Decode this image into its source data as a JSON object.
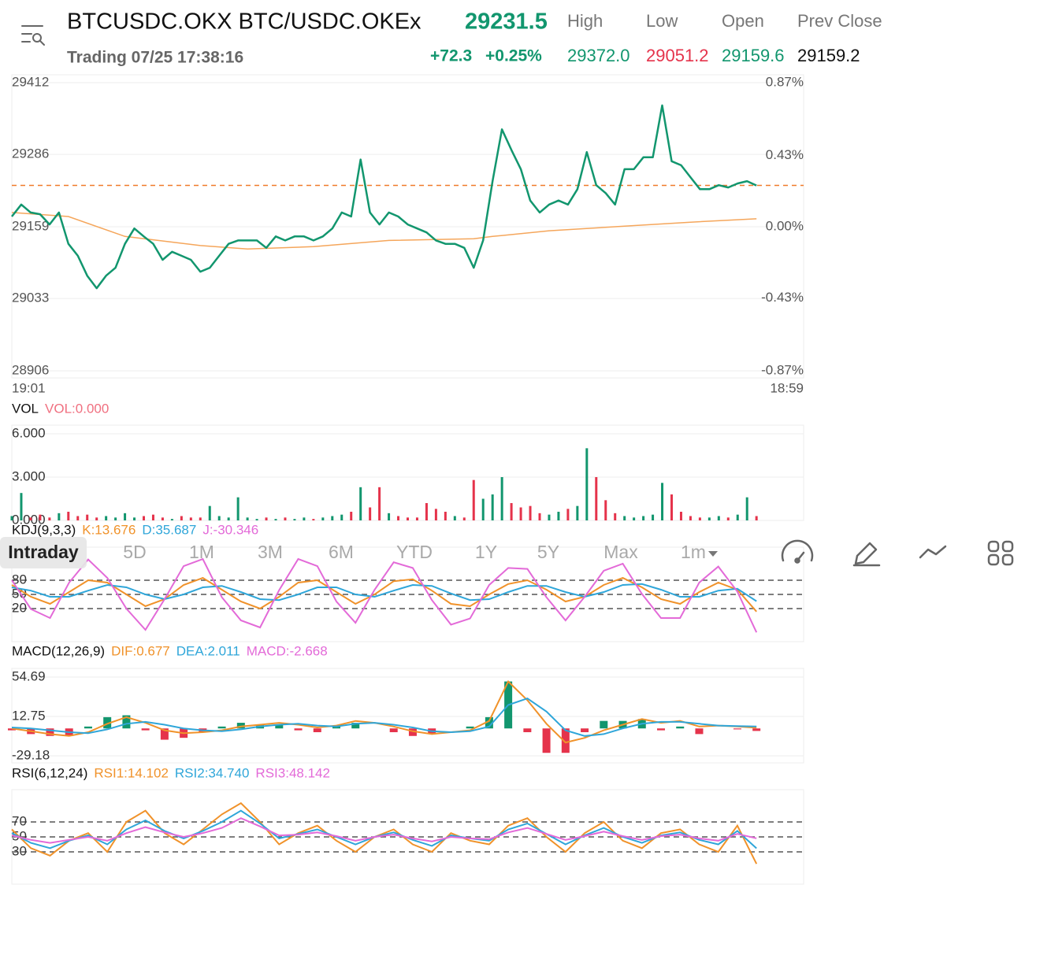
{
  "header": {
    "title": "BTCUSDC.OKX BTC/USDC.OKEx",
    "price": "29231.5",
    "status": "Trading 07/25 17:38:16",
    "change": "+72.3",
    "change_pct": "+0.25%",
    "up_color": "#12966e",
    "stats": [
      {
        "label": "High",
        "value": "29372.0",
        "color": "#12966e"
      },
      {
        "label": "Low",
        "value": "29051.2",
        "color": "#e5334b"
      },
      {
        "label": "Open",
        "value": "29159.6",
        "color": "#12966e"
      },
      {
        "label": "Prev Close",
        "value": "29159.2",
        "color": "#111111"
      }
    ]
  },
  "price_chart": {
    "type": "line",
    "xlim": [
      0,
      84
    ],
    "ylim": [
      28906,
      29412
    ],
    "yticks": [
      29412,
      29286,
      29159,
      29033,
      28906
    ],
    "y2lim": [
      -0.87,
      0.87
    ],
    "y2ticks": [
      {
        "value": 0.87,
        "label": "0.87%"
      },
      {
        "value": 0.43,
        "label": "0.43%"
      },
      {
        "value": 0,
        "label": "0.00%"
      },
      {
        "value": -0.43,
        "label": "-0.43%"
      },
      {
        "value": -0.87,
        "label": "-0.87%"
      }
    ],
    "xlabels": [
      "19:01",
      "18:59"
    ],
    "grid": true,
    "last_price": 29231.5,
    "last_color": "#f07a2a",
    "series": [
      {
        "color": "#12966e",
        "values": [
          29177,
          29198,
          29184,
          29181,
          29163,
          29184,
          29129,
          29108,
          29073,
          29051,
          29073,
          29087,
          29129,
          29156,
          29142,
          29129,
          29101,
          29115,
          29108,
          29101,
          29080,
          29087,
          29108,
          29129,
          29135,
          29135,
          29135,
          29122,
          29142,
          29135,
          29142,
          29142,
          29135,
          29142,
          29156,
          29184,
          29177,
          29277,
          29184,
          29163,
          29184,
          29177,
          29163,
          29156,
          29149,
          29135,
          29129,
          29129,
          29122,
          29087,
          29135,
          29239,
          29330,
          29294,
          29260,
          29205,
          29184,
          29198,
          29205,
          29198,
          29225,
          29290,
          29232,
          29218,
          29198,
          29260,
          29260,
          29281,
          29281,
          29372,
          29274,
          29267,
          29246,
          29225,
          29225,
          29232,
          29228,
          29235,
          29239,
          29231.5
        ]
      }
    ],
    "avg": {
      "color": "#f5a65b",
      "x": [
        0,
        6,
        12,
        20,
        25,
        32,
        40,
        49,
        51,
        57,
        65,
        72,
        79
      ],
      "values": [
        29184,
        29177,
        29142,
        29126,
        29120,
        29124,
        29135,
        29138,
        29142,
        29152,
        29160,
        29167,
        29173
      ]
    }
  },
  "volume": {
    "labels": [
      {
        "text": "VOL",
        "color": "#111111"
      },
      {
        "text": "VOL:0.000",
        "color": "#f07080"
      }
    ],
    "ylim": [
      0,
      6.6
    ],
    "yticks": [
      {
        "value": 6,
        "label": "6.000"
      },
      {
        "value": 3,
        "label": "3.000"
      },
      {
        "value": 0,
        "label": "0.000"
      }
    ],
    "up_color": "#12966e",
    "down_color": "#e5334b",
    "values": [
      0.3,
      1.9,
      0.2,
      0.4,
      0.2,
      0.5,
      0.6,
      0.3,
      0.4,
      0.2,
      0.3,
      0.2,
      0.5,
      0.2,
      0.3,
      0.4,
      0.2,
      0.1,
      0.3,
      0.2,
      0.2,
      1.0,
      0.3,
      0.2,
      1.6,
      0.2,
      0.1,
      0.2,
      0.1,
      0.2,
      0.1,
      0.2,
      0.1,
      0.2,
      0.3,
      0.4,
      0.6,
      2.3,
      0.9,
      2.3,
      0.5,
      0.3,
      0.2,
      0.2,
      1.2,
      0.8,
      0.6,
      0.3,
      0.2,
      2.8,
      1.5,
      1.8,
      3.0,
      1.2,
      0.9,
      1.0,
      0.5,
      0.4,
      0.6,
      0.8,
      1.0,
      5.0,
      3.0,
      1.4,
      0.5,
      0.3,
      0.2,
      0.3,
      0.4,
      2.6,
      1.8,
      0.6,
      0.3,
      0.2,
      0.2,
      0.3,
      0.2,
      0.4,
      1.6,
      0.3
    ]
  },
  "kdj": {
    "labels": [
      {
        "text": "KDJ(9,3,3)",
        "color": "#111111"
      },
      {
        "text": "K:13.676",
        "color": "#f0922a"
      },
      {
        "text": "D:35.687",
        "color": "#2fa6d9"
      },
      {
        "text": "J:-30.346",
        "color": "#e36ad8"
      }
    ],
    "ylim": [
      -50,
      150
    ],
    "yticks": [
      80,
      50,
      20
    ],
    "dashed": true,
    "series": [
      {
        "color": "#f0922a",
        "values": [
          70,
          45,
          30,
          55,
          80,
          75,
          50,
          25,
          40,
          70,
          85,
          60,
          35,
          20,
          45,
          75,
          80,
          55,
          30,
          50,
          78,
          82,
          58,
          30,
          25,
          50,
          72,
          80,
          60,
          35,
          45,
          70,
          85,
          65,
          40,
          30,
          55,
          75,
          60,
          13.676
        ]
      },
      {
        "color": "#2fa6d9",
        "values": [
          65,
          58,
          45,
          45,
          58,
          70,
          65,
          50,
          40,
          50,
          65,
          68,
          55,
          40,
          38,
          50,
          65,
          65,
          50,
          45,
          58,
          70,
          68,
          52,
          38,
          40,
          55,
          68,
          68,
          55,
          45,
          55,
          70,
          72,
          60,
          45,
          45,
          58,
          62,
          35.687
        ]
      },
      {
        "color": "#e36ad8",
        "values": [
          80,
          19,
          0,
          75,
          124,
          85,
          20,
          -25,
          40,
          110,
          125,
          44,
          -5,
          -20,
          59,
          125,
          110,
          35,
          -10,
          60,
          118,
          106,
          38,
          -14,
          -1,
          70,
          106,
          104,
          44,
          -5,
          45,
          100,
          115,
          51,
          0,
          0,
          75,
          109,
          56,
          -30.346
        ]
      }
    ]
  },
  "macd": {
    "labels": [
      {
        "text": "MACD(12,26,9)",
        "color": "#111111"
      },
      {
        "text": "DIF:0.677",
        "color": "#f0922a"
      },
      {
        "text": "DEA:2.011",
        "color": "#2fa6d9"
      },
      {
        "text": "MACD:-2.668",
        "color": "#e36ad8"
      }
    ],
    "ylim": [
      -36.7,
      63.9
    ],
    "yticks": [
      54.69,
      12.75,
      -29.18
    ],
    "dashed": false,
    "up_color": "#12966e",
    "down_color": "#e5334b",
    "bars": [
      -2,
      -6,
      -8,
      -8,
      2,
      12,
      14,
      -2,
      -12,
      -10,
      -4,
      2,
      6,
      4,
      4,
      -2,
      -4,
      2,
      6,
      0,
      -4,
      -8,
      -6,
      0,
      2,
      12,
      50,
      -4,
      -26,
      -26,
      -4,
      8,
      8,
      10,
      -2,
      2,
      -6,
      0,
      -1,
      -2.668
    ],
    "series": [
      {
        "color": "#f0922a",
        "values": [
          0,
          -3,
          -6,
          -8,
          -4,
          5,
          12,
          6,
          -2,
          -5,
          -4,
          -2,
          2,
          4,
          6,
          4,
          1,
          3,
          8,
          6,
          2,
          -3,
          -6,
          -4,
          -2,
          8,
          50,
          30,
          5,
          -15,
          -10,
          -2,
          4,
          10,
          6,
          8,
          2,
          3,
          2,
          0.677
        ]
      },
      {
        "color": "#2fa6d9",
        "values": [
          1,
          0,
          -2,
          -4,
          -5,
          -1,
          5,
          7,
          4,
          0,
          -2,
          -3,
          -1,
          2,
          4,
          5,
          3,
          2,
          5,
          6,
          4,
          1,
          -3,
          -4,
          -3,
          2,
          25,
          32,
          18,
          -2,
          -8,
          -6,
          0,
          5,
          7,
          7,
          5,
          3,
          2.5,
          2.011
        ]
      }
    ]
  },
  "rsi": {
    "labels": [
      {
        "text": "RSI(6,12,24)",
        "color": "#111111"
      },
      {
        "text": "RSI1:14.102",
        "color": "#f0922a"
      },
      {
        "text": "RSI2:34.740",
        "color": "#2fa6d9"
      },
      {
        "text": "RSI3:48.142",
        "color": "#e36ad8"
      }
    ],
    "ylim": [
      -13,
      113
    ],
    "yticks": [
      70,
      50,
      30
    ],
    "dashed": true,
    "series": [
      {
        "color": "#f0922a",
        "values": [
          60,
          35,
          25,
          45,
          55,
          30,
          70,
          85,
          55,
          40,
          60,
          80,
          95,
          70,
          40,
          55,
          65,
          45,
          30,
          50,
          60,
          40,
          30,
          55,
          45,
          40,
          65,
          75,
          50,
          30,
          55,
          70,
          45,
          35,
          55,
          60,
          40,
          30,
          65,
          14.102
        ]
      },
      {
        "color": "#2fa6d9",
        "values": [
          55,
          42,
          35,
          45,
          52,
          40,
          60,
          72,
          58,
          48,
          58,
          70,
          85,
          68,
          48,
          54,
          60,
          50,
          40,
          50,
          56,
          46,
          38,
          52,
          48,
          45,
          60,
          68,
          54,
          40,
          52,
          62,
          50,
          42,
          52,
          56,
          46,
          40,
          58,
          34.74
        ]
      },
      {
        "color": "#e36ad8",
        "values": [
          52,
          46,
          42,
          46,
          50,
          45,
          55,
          63,
          56,
          50,
          55,
          62,
          75,
          64,
          52,
          53,
          56,
          51,
          45,
          50,
          53,
          48,
          44,
          50,
          48,
          47,
          56,
          62,
          54,
          46,
          51,
          57,
          51,
          46,
          51,
          53,
          48,
          45,
          54,
          48.142
        ]
      }
    ]
  },
  "tabs": {
    "items": [
      "Intraday",
      "5D",
      "1M",
      "3M",
      "6M",
      "YTD",
      "1Y",
      "5Y",
      "Max",
      "1m"
    ],
    "selected": 0
  }
}
